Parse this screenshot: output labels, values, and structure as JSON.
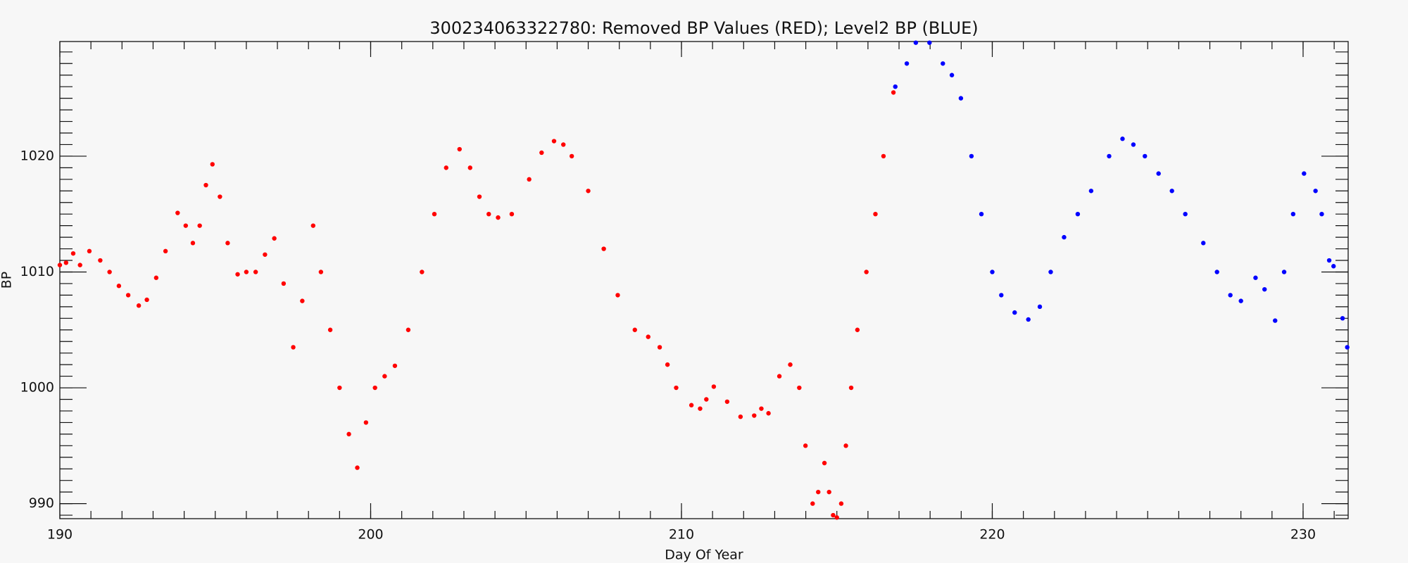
{
  "chart_data": {
    "type": "scatter",
    "title": "300234063322780: Removed BP Values (RED); Level2 BP (BLUE)",
    "x_label": "Day Of Year",
    "y_label": "BP",
    "xlim": [
      190,
      231.45
    ],
    "ylim": [
      988.7,
      1029.9
    ],
    "xticks": [
      190,
      200,
      210,
      220,
      230
    ],
    "yticks": [
      990,
      1000,
      1010,
      1020
    ],
    "grid": false,
    "series": [
      {
        "name": "Removed BP Values",
        "color": "#ff0000",
        "x": [
          190.0,
          190.2,
          190.43,
          190.65,
          190.95,
          191.3,
          191.6,
          191.9,
          192.2,
          192.54,
          192.8,
          193.1,
          193.4,
          193.79,
          194.05,
          194.28,
          194.5,
          194.7,
          194.91,
          195.15,
          195.4,
          195.72,
          196.0,
          196.3,
          196.6,
          196.9,
          197.2,
          197.51,
          197.8,
          198.15,
          198.4,
          198.7,
          199.0,
          199.3,
          199.57,
          199.85,
          200.14,
          200.45,
          200.78,
          201.21,
          201.65,
          202.05,
          202.43,
          202.86,
          203.2,
          203.5,
          203.8,
          204.1,
          204.54,
          205.1,
          205.5,
          205.9,
          206.2,
          206.47,
          207.0,
          207.5,
          207.95,
          208.5,
          208.93,
          209.3,
          209.55,
          209.83,
          210.32,
          210.6,
          210.8,
          211.04,
          211.47,
          211.9,
          212.34,
          212.57,
          212.8,
          213.15,
          213.5,
          213.79,
          213.99,
          214.22,
          214.4,
          214.6,
          214.75,
          214.88,
          215.0,
          215.14,
          215.29,
          215.46,
          215.66,
          215.95,
          216.24,
          216.5,
          216.82
        ],
        "values": [
          1010.6,
          1010.8,
          1011.6,
          1010.6,
          1011.8,
          1011.0,
          1010.0,
          1008.8,
          1008.0,
          1007.1,
          1007.6,
          1009.5,
          1011.8,
          1015.1,
          1014.0,
          1012.5,
          1014.0,
          1017.5,
          1019.3,
          1016.5,
          1012.5,
          1009.8,
          1010.0,
          1010.0,
          1011.5,
          1012.9,
          1009.0,
          1003.5,
          1007.5,
          1014.0,
          1010.0,
          1005.0,
          1000.0,
          996.0,
          993.1,
          997.0,
          1000.0,
          1001.0,
          1001.9,
          1005.0,
          1010.0,
          1015.0,
          1019.0,
          1020.6,
          1019.0,
          1016.5,
          1015.0,
          1014.7,
          1015.0,
          1018.0,
          1020.3,
          1021.3,
          1021.0,
          1020.0,
          1017.0,
          1012.0,
          1008.0,
          1005.0,
          1004.4,
          1003.5,
          1002.0,
          1000.0,
          998.5,
          998.2,
          999.0,
          1000.1,
          998.8,
          997.5,
          997.6,
          998.2,
          997.8,
          1001.0,
          1002.0,
          1000.0,
          995.0,
          990.0,
          991.0,
          993.5,
          991.0,
          989.0,
          988.8,
          990.0,
          995.0,
          1000.0,
          1005.0,
          1010.0,
          1015.0,
          1020.0,
          1025.5
        ]
      },
      {
        "name": "Level2 BP",
        "color": "#0000ff",
        "x": [
          216.88,
          217.25,
          217.54,
          217.98,
          218.41,
          218.7,
          218.99,
          219.33,
          219.65,
          220.0,
          220.29,
          220.72,
          221.16,
          221.53,
          221.88,
          222.31,
          222.75,
          223.18,
          223.76,
          224.19,
          224.54,
          224.91,
          225.35,
          225.78,
          226.21,
          226.79,
          227.23,
          227.66,
          228.0,
          228.47,
          228.76,
          229.1,
          229.39,
          229.68,
          230.03,
          230.4,
          230.6,
          230.84,
          230.98,
          231.27,
          231.42
        ],
        "values": [
          1026.0,
          1028.0,
          1029.8,
          1029.8,
          1028.0,
          1027.0,
          1025.0,
          1020.0,
          1015.0,
          1010.0,
          1008.0,
          1006.5,
          1005.9,
          1007.0,
          1010.0,
          1013.0,
          1015.0,
          1017.0,
          1020.0,
          1021.5,
          1021.0,
          1020.0,
          1018.5,
          1017.0,
          1015.0,
          1012.5,
          1010.0,
          1008.0,
          1007.5,
          1009.5,
          1008.5,
          1005.8,
          1010.0,
          1015.0,
          1018.5,
          1017.0,
          1015.0,
          1011.0,
          1010.5,
          1006.0,
          1003.5
        ]
      }
    ]
  }
}
